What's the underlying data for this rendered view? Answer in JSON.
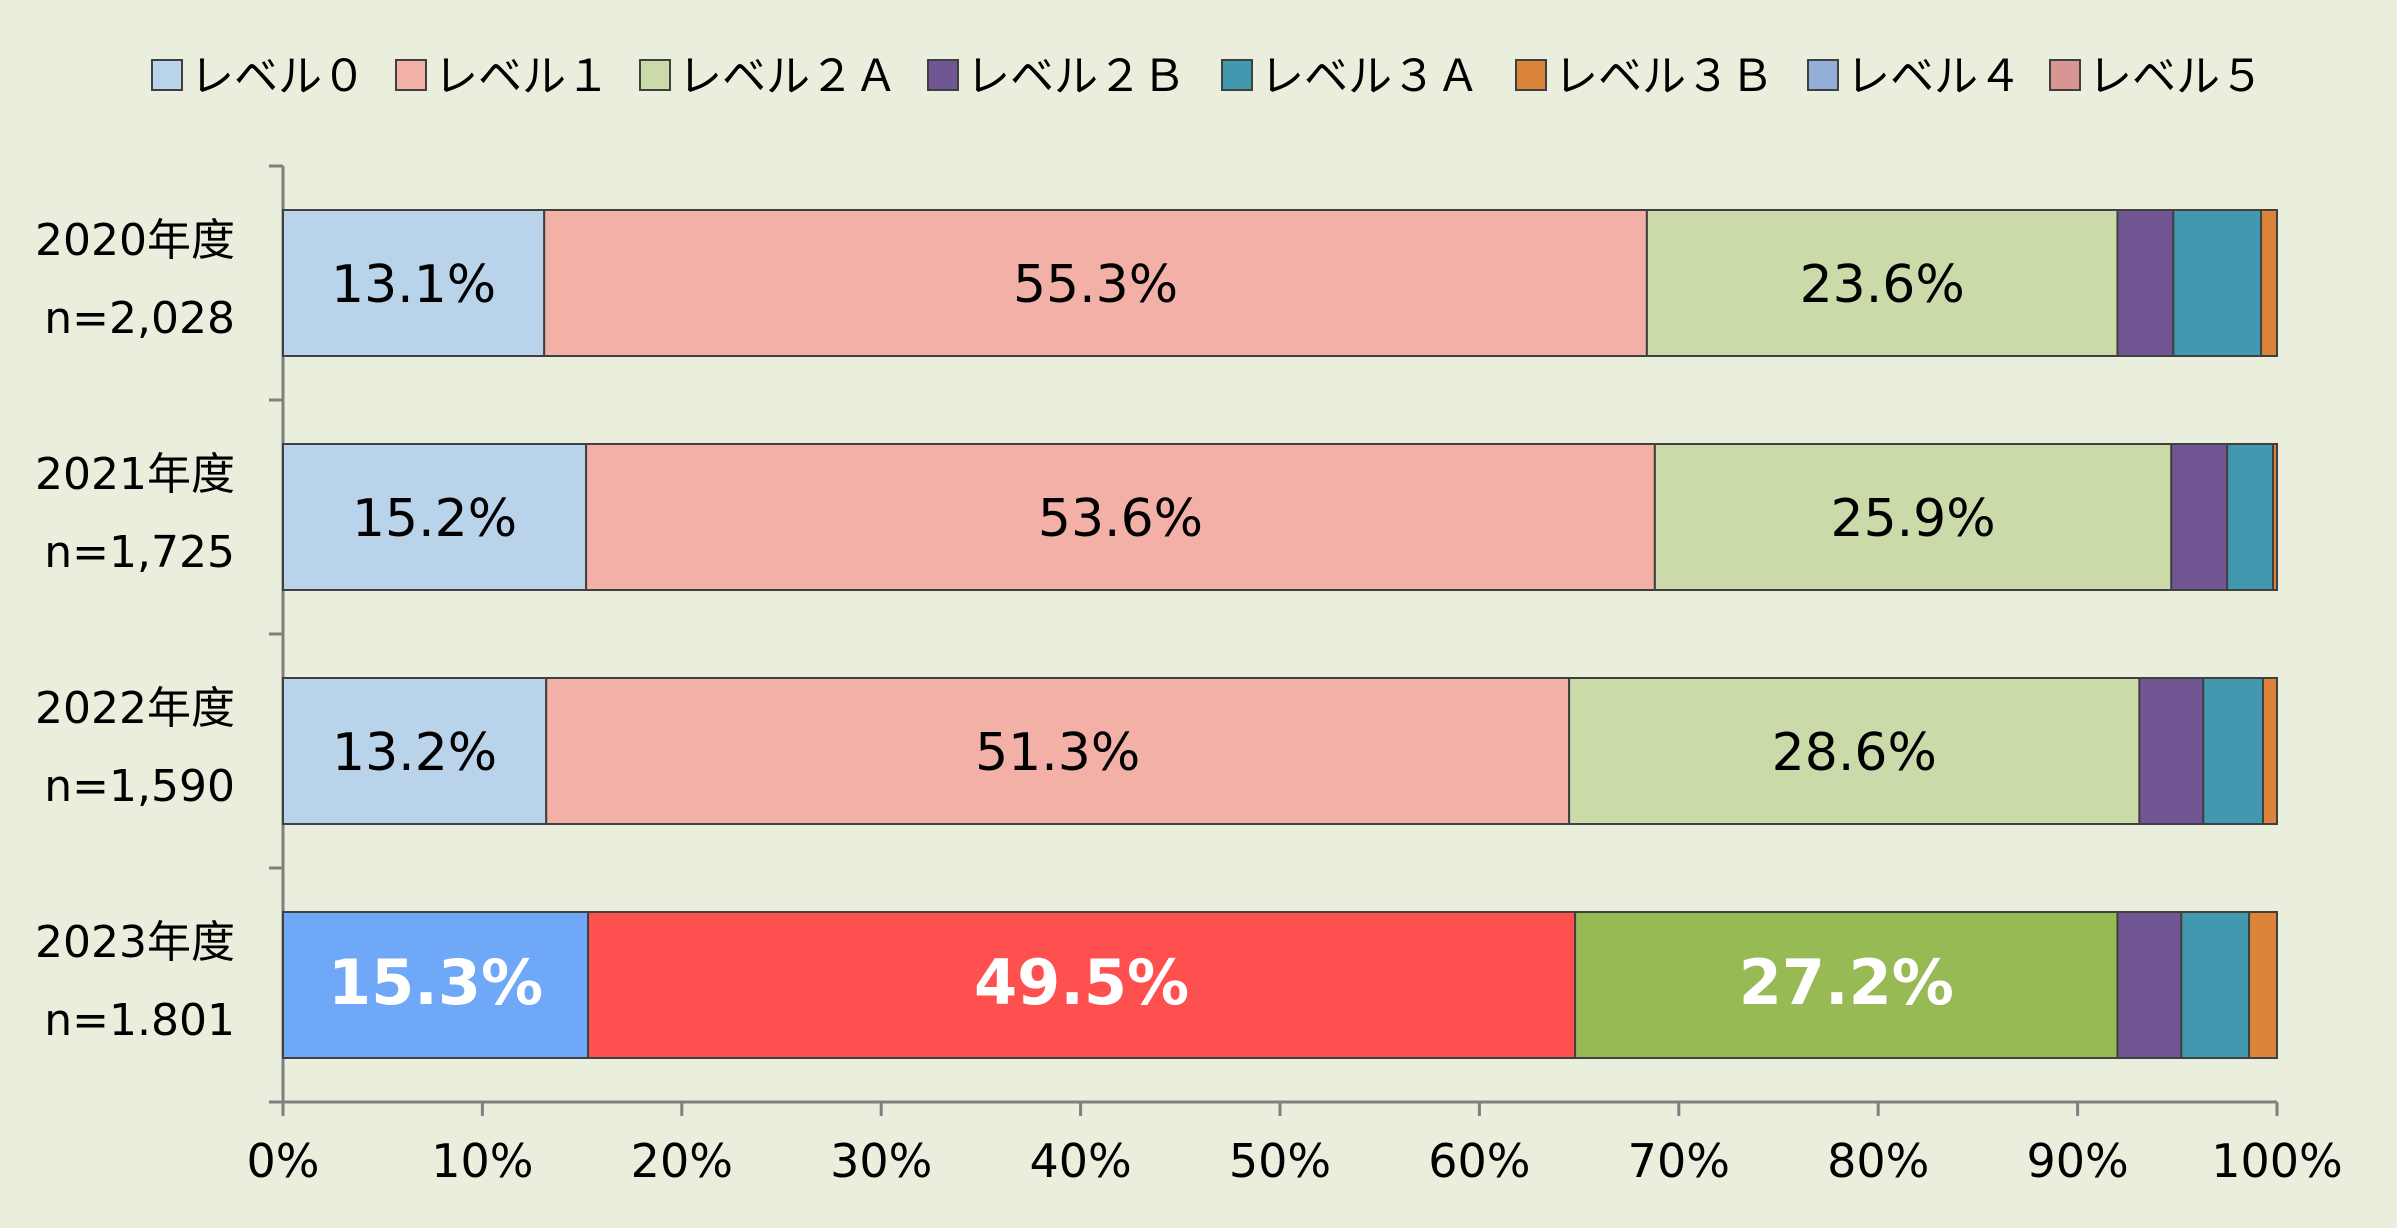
{
  "chart_data": {
    "type": "bar",
    "orientation": "horizontal",
    "stacked": "percent",
    "title": "",
    "xlabel": "",
    "ylabel": "",
    "xlim": [
      0,
      100
    ],
    "legend_position": "top",
    "grid": false,
    "categories": [
      {
        "label": "2020年度",
        "n": "n=2,028"
      },
      {
        "label": "2021年度",
        "n": "n=1,725"
      },
      {
        "label": "2022年度",
        "n": "n=1,590"
      },
      {
        "label": "2023年度",
        "n": "n=1.801"
      }
    ],
    "x_ticks": [
      "0%",
      "10%",
      "20%",
      "30%",
      "40%",
      "50%",
      "60%",
      "70%",
      "80%",
      "90%",
      "100%"
    ],
    "series": [
      {
        "name": "レベル０",
        "color": "#B9D3EA",
        "highlight_color": "#6FA8F7",
        "values": [
          13.1,
          15.2,
          13.2,
          15.3
        ]
      },
      {
        "name": "レベル１",
        "color": "#F3B0A6",
        "highlight_color": "#FF5050",
        "values": [
          55.3,
          53.6,
          51.3,
          49.5
        ]
      },
      {
        "name": "レベル２Ａ",
        "color": "#CADBA9",
        "highlight_color": "#98BA55",
        "values": [
          23.6,
          25.9,
          28.6,
          27.2
        ]
      },
      {
        "name": "レベル２Ｂ",
        "color": "#705692",
        "highlight_color": "#705692",
        "values": [
          2.8,
          2.8,
          3.2,
          3.2
        ]
      },
      {
        "name": "レベル３Ａ",
        "color": "#4298AE",
        "highlight_color": "#4298AE",
        "values": [
          4.4,
          2.3,
          3.0,
          3.4
        ]
      },
      {
        "name": "レベル３Ｂ",
        "color": "#DD843B",
        "highlight_color": "#DD843B",
        "values": [
          0.8,
          0.2,
          0.7,
          1.4
        ]
      },
      {
        "name": "レベル４",
        "color": "#93AED7",
        "highlight_color": "#93AED7",
        "values": [
          0,
          0,
          0,
          0
        ]
      },
      {
        "name": "レベル５",
        "color": "#D99594",
        "highlight_color": "#D99594",
        "values": [
          0,
          0,
          0,
          0
        ]
      }
    ],
    "data_labels": [
      [
        "13.1%",
        "55.3%",
        "23.6%"
      ],
      [
        "15.2%",
        "53.6%",
        "25.9%"
      ],
      [
        "13.2%",
        "51.3%",
        "28.6%"
      ],
      [
        "15.3%",
        "49.5%",
        "27.2%"
      ]
    ],
    "highlighted_category_index": 3
  }
}
